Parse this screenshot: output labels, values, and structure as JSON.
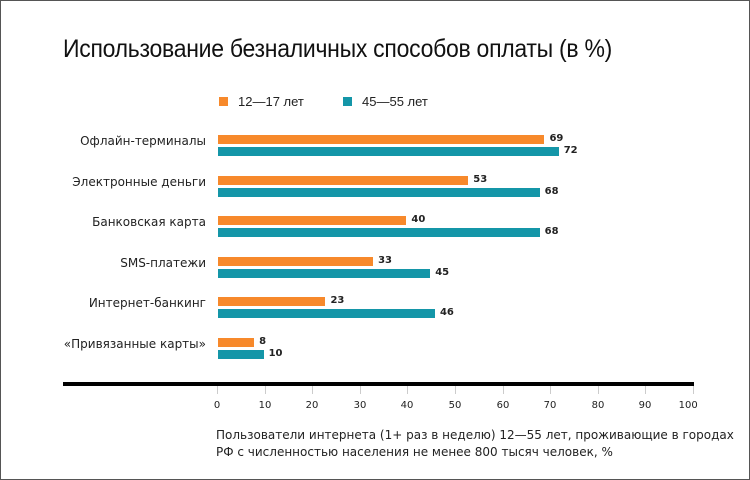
{
  "colors": {
    "series1": "#F7892B",
    "series2": "#1496A8"
  },
  "chart_data": {
    "type": "bar",
    "orientation": "horizontal",
    "title": "Использование безналичных способов оплаты (в %)",
    "categories": [
      "Офлайн-терминалы",
      "Электронные деньги",
      "Банковская карта",
      "SMS-платежи",
      "Интернет-банкинг",
      "«Привязанные карты»"
    ],
    "series": [
      {
        "name": "12—17 лет",
        "values": [
          69,
          53,
          40,
          33,
          23,
          8
        ]
      },
      {
        "name": "45—55 лет",
        "values": [
          72,
          68,
          68,
          45,
          46,
          10
        ]
      }
    ],
    "xlim": [
      0,
      100
    ],
    "xticks": [
      "0",
      "10",
      "20",
      "30",
      "40",
      "50",
      "60",
      "70",
      "80",
      "90",
      "100"
    ],
    "legend_position": "top",
    "grid": false,
    "note": [
      "Пользователи интернета (1+ раз в неделю) 12—55 лет, проживающие в городах",
      "РФ с численностью населения не менее 800 тысяч человек, %"
    ]
  }
}
